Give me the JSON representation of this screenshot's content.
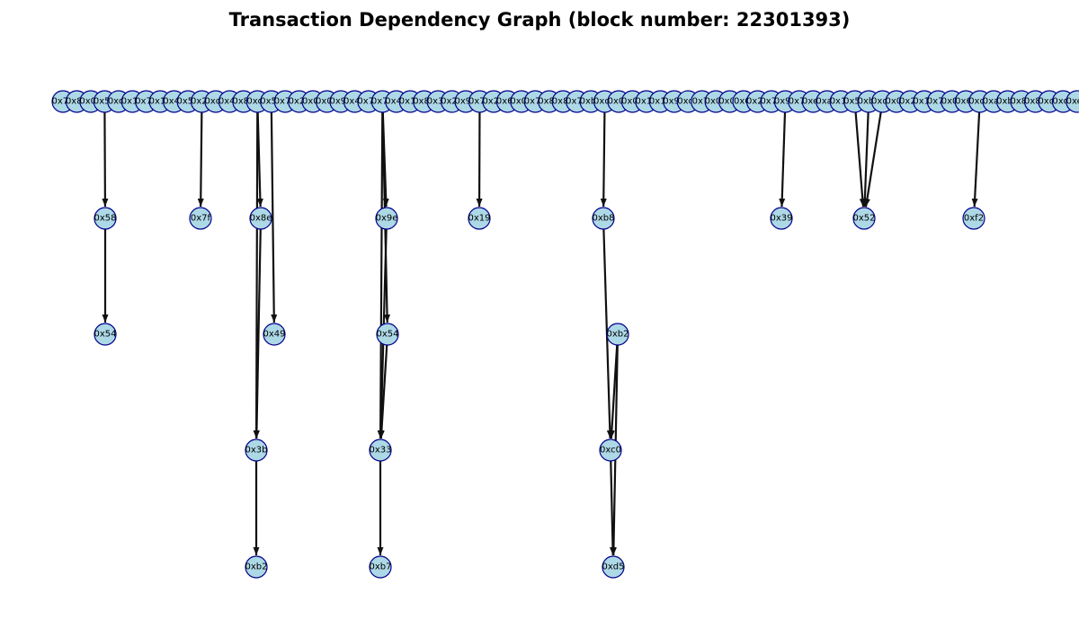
{
  "title": "Transaction Dependency Graph (block number: 22301393)",
  "colors": {
    "node_fill": "#add8e6",
    "node_stroke": "#00008b",
    "edge": "#111111"
  },
  "top_row": [
    "0x77",
    "0x8b",
    "0x0b",
    "0x5d",
    "0xc6",
    "0x19",
    "0x71",
    "0x13",
    "0x4a",
    "0x55",
    "0x20",
    "0xd6",
    "0x42",
    "0x8d",
    "0xca",
    "0x56",
    "0x73",
    "0x2c",
    "0x0c",
    "0x0b",
    "0x95",
    "0x4e",
    "0x70",
    "0x72",
    "0x4d",
    "0x18",
    "0x8d",
    "0x3a",
    "0x28",
    "0x95",
    "0x78",
    "0x20",
    "0x65",
    "0x0b",
    "0x70",
    "0x82",
    "0x8e",
    "0x73",
    "0xb2",
    "0xd2",
    "0x0e",
    "0x0e",
    "0x1a",
    "0x18",
    "0x95",
    "0xc7",
    "0x7f",
    "0x0b",
    "0x0e",
    "0x6f",
    "0x25",
    "0x7d",
    "0x95",
    "0x7c",
    "0xe0",
    "0xa1",
    "0x14",
    "0x56",
    "0xbb",
    "0xd6",
    "0x0d",
    "0x2a",
    "0x1b",
    "0x74",
    "0x0c",
    "0x6c",
    "0xd5",
    "0xa3",
    "0xb0",
    "0x89",
    "0x82",
    "0xd5",
    "0xc6",
    "0xe7",
    "0x42",
    "0xb9"
  ],
  "chains": [
    {
      "nodes": [
        "0x58",
        "0x54"
      ]
    },
    {
      "nodes": [
        "0x7f"
      ]
    },
    {
      "nodes": [
        "0x8e",
        "0x49",
        "0x3b",
        "0xb2"
      ]
    },
    {
      "nodes": [
        "0x9e",
        "0x54",
        "0x33",
        "0xb7"
      ]
    },
    {
      "nodes": [
        "0x19"
      ]
    },
    {
      "nodes": [
        "0xb8",
        "0xb2",
        "0xc0",
        "0xd5"
      ]
    },
    {
      "nodes": [
        "0x39"
      ]
    },
    {
      "nodes": [
        "0x52"
      ]
    },
    {
      "nodes": [
        "0xf2"
      ]
    }
  ]
}
